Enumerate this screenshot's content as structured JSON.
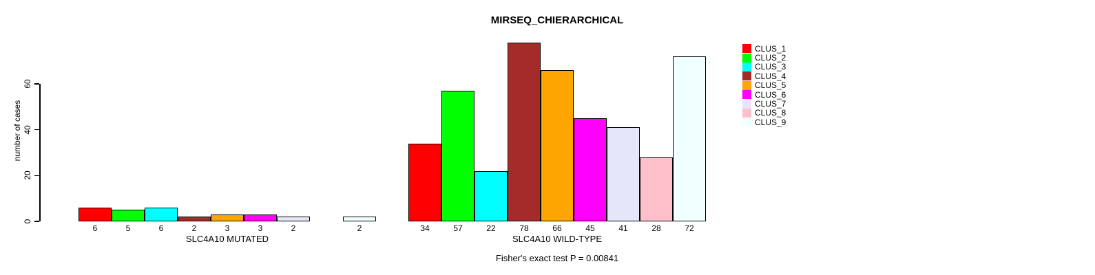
{
  "chart_data": {
    "type": "bar",
    "title": "MIRSEQ_CHIERARCHICAL",
    "ylabel": "number of cases",
    "xlabel": "",
    "ylim": [
      0,
      60
    ],
    "yticks": [
      0,
      20,
      40,
      60
    ],
    "grid": false,
    "legend_position": "right",
    "annotation": "Fisher's exact test P = 0.00841",
    "series": [
      {
        "name": "CLUS_1",
        "color": "#FF0000"
      },
      {
        "name": "CLUS_2",
        "color": "#00FF00"
      },
      {
        "name": "CLUS_3",
        "color": "#00FFFF"
      },
      {
        "name": "CLUS_4",
        "color": "#A52A2A"
      },
      {
        "name": "CLUS_5",
        "color": "#FFA500"
      },
      {
        "name": "CLUS_6",
        "color": "#FF00FF"
      },
      {
        "name": "CLUS_7",
        "color": "#E6E6FA"
      },
      {
        "name": "CLUS_8",
        "color": "#FFC0CB"
      },
      {
        "name": "CLUS_9",
        "color": "#F0FFFF"
      }
    ],
    "groups": [
      {
        "label": "SLC4A10 MUTATED",
        "values": [
          6,
          5,
          6,
          2,
          3,
          3,
          2,
          0,
          2
        ],
        "bar_labels": [
          "6",
          "5",
          "6",
          "2",
          "3",
          "3",
          "2",
          "",
          "2"
        ]
      },
      {
        "label": "SLC4A10 WILD-TYPE",
        "values": [
          34,
          57,
          22,
          78,
          66,
          45,
          41,
          28,
          72
        ],
        "bar_labels": [
          "34",
          "57",
          "22",
          "78",
          "66",
          "45",
          "41",
          "28",
          "72"
        ]
      }
    ]
  }
}
